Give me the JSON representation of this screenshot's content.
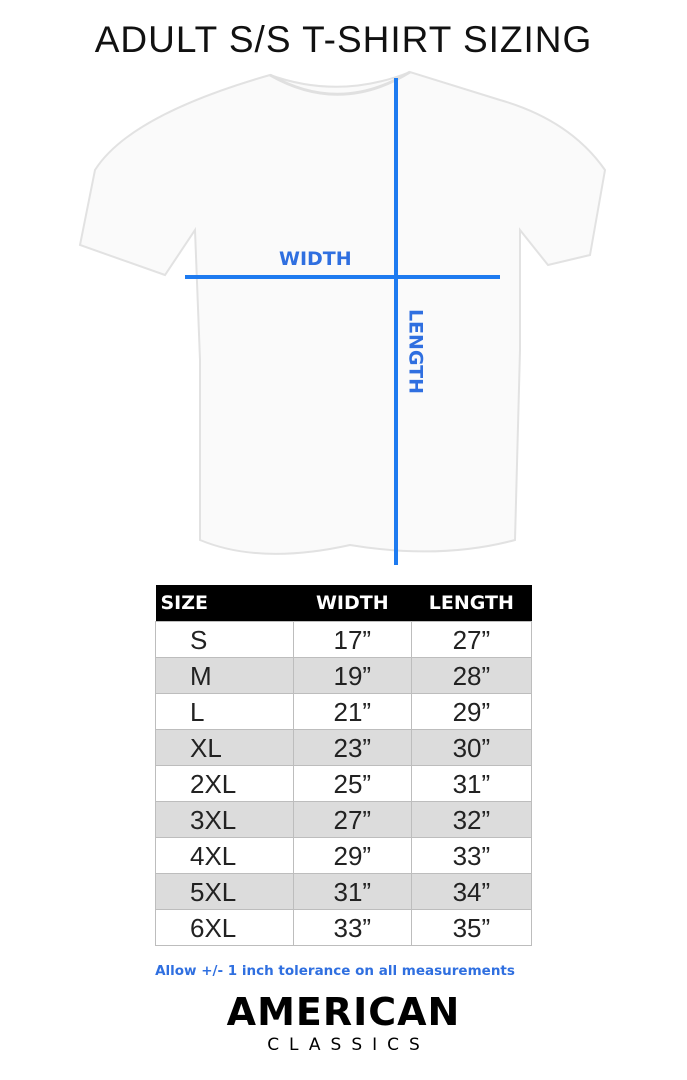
{
  "title": "ADULT S/S T-SHIRT SIZING",
  "diagram": {
    "width_label": "WIDTH",
    "length_label": "LENGTH",
    "line_color": "#1e7bf0"
  },
  "table": {
    "headers": [
      "SIZE",
      "WIDTH",
      "LENGTH"
    ],
    "rows": [
      [
        "S",
        "17”",
        "27”"
      ],
      [
        "M",
        "19”",
        "28”"
      ],
      [
        "L",
        "21”",
        "29”"
      ],
      [
        "XL",
        "23”",
        "30”"
      ],
      [
        "2XL",
        "25”",
        "31”"
      ],
      [
        "3XL",
        "27”",
        "32”"
      ],
      [
        "4XL",
        "29”",
        "33”"
      ],
      [
        "5XL",
        "31”",
        "34”"
      ],
      [
        "6XL",
        "33”",
        "35”"
      ]
    ]
  },
  "note": "Allow +/- 1 inch tolerance on all measurements",
  "logo": {
    "line1": "AMERICAN",
    "line2": "CLASSICS"
  }
}
